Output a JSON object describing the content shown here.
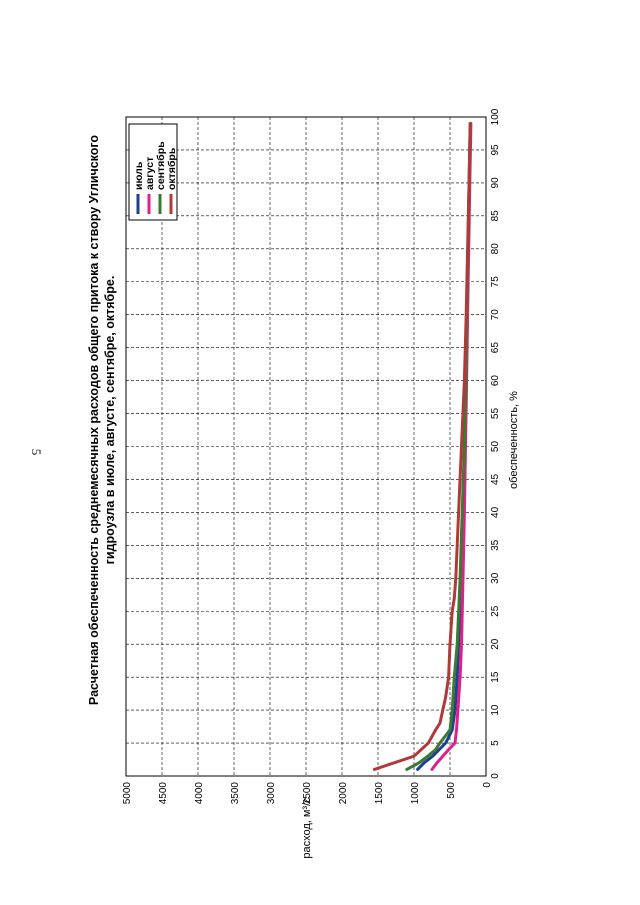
{
  "page": {
    "number": "5"
  },
  "chart_data": {
    "type": "line",
    "title": "Расчетная обеспеченность среднемесячных расходов общего притока к створу Угличского гидроузла в июле, августе, сентябре, октябре.",
    "title_lines": [
      "Расчетная обеспеченность среднемесячных расходов общего притока к створу Угличского",
      "гидроузла в июле, августе, сентябре, октябре."
    ],
    "xlabel": "обеспеченность, %",
    "ylabel": "расход, м³/с",
    "xlim": [
      0,
      100
    ],
    "ylim": [
      0,
      5000
    ],
    "x_ticks": [
      "0",
      "5",
      "10",
      "15",
      "20",
      "25",
      "30",
      "35",
      "40",
      "45",
      "50",
      "55",
      "60",
      "65",
      "70",
      "75",
      "80",
      "85",
      "90",
      "95",
      "100"
    ],
    "y_ticks": [
      "0",
      "500",
      "1000",
      "1500",
      "2000",
      "2500",
      "3000",
      "3500",
      "4000",
      "4500",
      "5000"
    ],
    "grid": true,
    "legend_position": "top-left",
    "series": [
      {
        "name": "июль",
        "color": "#1f3f8f",
        "x": [
          1,
          2,
          3,
          5,
          7,
          10,
          15,
          20,
          30,
          40,
          50,
          60,
          70,
          80,
          90,
          95,
          99
        ],
        "y": [
          950,
          860,
          740,
          560,
          470,
          430,
          400,
          380,
          350,
          320,
          300,
          280,
          265,
          250,
          235,
          225,
          215
        ]
      },
      {
        "name": "август",
        "color": "#e0208a",
        "x": [
          1,
          2,
          3,
          4,
          5,
          7,
          10,
          15,
          20,
          30,
          40,
          50,
          60,
          70,
          80,
          90,
          99
        ],
        "y": [
          750,
          680,
          600,
          520,
          430,
          410,
          390,
          360,
          340,
          320,
          300,
          285,
          270,
          255,
          240,
          225,
          210
        ]
      },
      {
        "name": "сентябрь",
        "color": "#3a7a32",
        "x": [
          1,
          2,
          3,
          4,
          5,
          7,
          10,
          15,
          20,
          30,
          40,
          50,
          60,
          70,
          80,
          90,
          99
        ],
        "y": [
          1100,
          930,
          810,
          700,
          640,
          500,
          470,
          440,
          400,
          360,
          330,
          300,
          280,
          265,
          250,
          235,
          220
        ]
      },
      {
        "name": "октябрь",
        "color": "#b03a3a",
        "x": [
          1,
          3,
          5,
          7,
          8,
          10,
          12,
          15,
          20,
          25,
          27,
          30,
          35,
          40,
          50,
          60,
          70,
          80,
          90,
          99
        ],
        "y": [
          1550,
          1000,
          800,
          700,
          640,
          600,
          560,
          520,
          500,
          470,
          440,
          420,
          400,
          380,
          340,
          300,
          275,
          255,
          235,
          220
        ]
      }
    ]
  }
}
